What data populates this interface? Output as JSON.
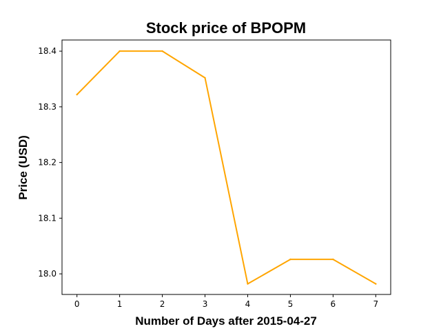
{
  "chart_data": {
    "type": "line",
    "title": "Stock price of BPOPM",
    "xlabel": "Number of Days after 2015-04-27",
    "ylabel": "Price (USD)",
    "x": [
      0,
      1,
      2,
      3,
      4,
      5,
      6,
      7
    ],
    "series": [
      {
        "values": [
          18.322,
          18.4,
          18.4,
          18.352,
          17.982,
          18.026,
          18.026,
          17.982
        ]
      }
    ],
    "xlim": [
      -0.35,
      7.35
    ],
    "ylim": [
      17.963,
      18.42
    ],
    "xticks": [
      0,
      1,
      2,
      3,
      4,
      5,
      6,
      7
    ],
    "yticks": [
      18.0,
      18.1,
      18.2,
      18.3,
      18.4
    ],
    "ytick_labels": [
      "18.0",
      "18.1",
      "18.2",
      "18.3",
      "18.4"
    ],
    "line_color": "#FFA500",
    "grid": false
  }
}
